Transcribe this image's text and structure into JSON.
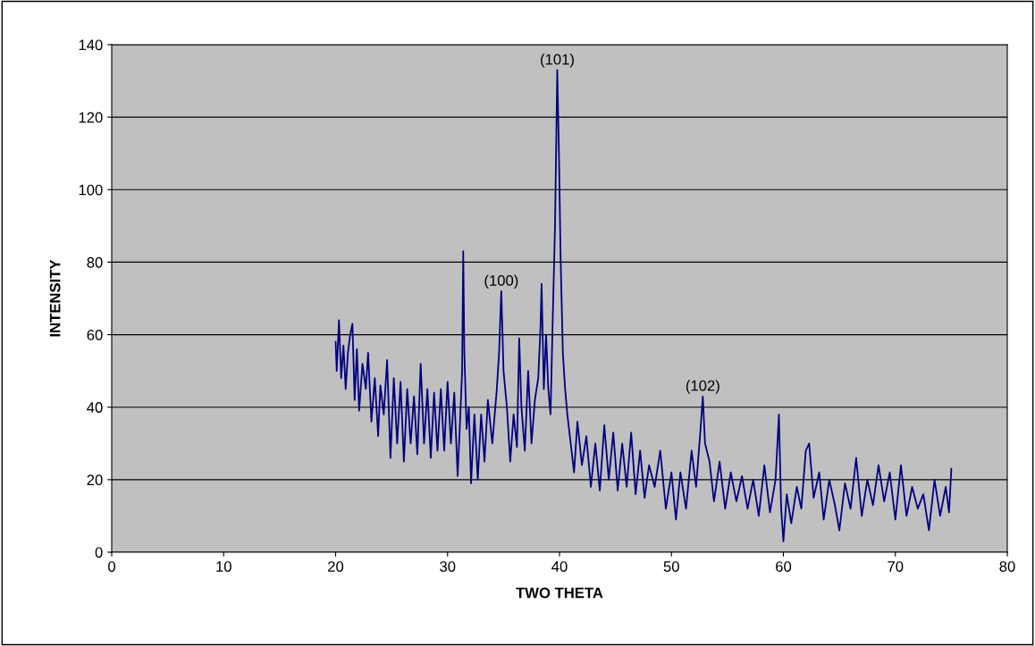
{
  "chart_data": {
    "type": "line",
    "xlabel": "TWO THETA",
    "ylabel": "INTENSITY",
    "xlim": [
      0,
      80
    ],
    "xticks": [
      0,
      10,
      20,
      30,
      40,
      50,
      60,
      70,
      80
    ],
    "ylim": [
      0,
      140
    ],
    "yticks": [
      0,
      20,
      40,
      60,
      80,
      100,
      120,
      140
    ],
    "grid": "y",
    "marker": "none",
    "line_style": "solid",
    "series": [
      {
        "color": "#000080",
        "x": [
          20.0,
          20.1,
          20.3,
          20.5,
          20.7,
          20.9,
          21.1,
          21.3,
          21.5,
          21.7,
          21.9,
          22.1,
          22.4,
          22.7,
          22.9,
          23.2,
          23.5,
          23.8,
          24.0,
          24.3,
          24.6,
          24.9,
          25.2,
          25.5,
          25.8,
          26.1,
          26.4,
          26.7,
          27.0,
          27.3,
          27.6,
          27.9,
          28.2,
          28.5,
          28.8,
          29.1,
          29.4,
          29.7,
          30.0,
          30.3,
          30.6,
          30.9,
          31.1,
          31.3,
          31.4,
          31.5,
          31.7,
          31.9,
          32.1,
          32.4,
          32.7,
          33.0,
          33.3,
          33.6,
          34.0,
          34.4,
          34.6,
          34.8,
          35.0,
          35.3,
          35.6,
          35.9,
          36.2,
          36.4,
          36.6,
          36.9,
          37.2,
          37.5,
          37.8,
          38.1,
          38.3,
          38.4,
          38.6,
          38.8,
          39.0,
          39.2,
          39.4,
          39.6,
          39.8,
          39.95,
          40.1,
          40.3,
          40.5,
          40.7,
          41.0,
          41.3,
          41.6,
          42.0,
          42.4,
          42.8,
          43.2,
          43.6,
          44.0,
          44.4,
          44.8,
          45.2,
          45.6,
          46.0,
          46.4,
          46.8,
          47.2,
          47.6,
          48.0,
          48.5,
          49.0,
          49.5,
          50.0,
          50.4,
          50.8,
          51.3,
          51.8,
          52.2,
          52.6,
          52.8,
          53.0,
          53.4,
          53.8,
          54.3,
          54.8,
          55.3,
          55.8,
          56.3,
          56.8,
          57.3,
          57.8,
          58.3,
          58.8,
          59.3,
          59.6,
          59.8,
          60.0,
          60.3,
          60.7,
          61.2,
          61.6,
          62.0,
          62.3,
          62.7,
          63.2,
          63.6,
          64.1,
          64.6,
          65.0,
          65.5,
          66.0,
          66.5,
          67.0,
          67.5,
          68.0,
          68.5,
          69.0,
          69.5,
          70.0,
          70.5,
          71.0,
          71.5,
          72.0,
          72.5,
          73.0,
          73.5,
          74.0,
          74.5,
          74.8,
          75.0
        ],
        "values": [
          58,
          50,
          64,
          48,
          57,
          45,
          55,
          60,
          63,
          42,
          56,
          39,
          52,
          45,
          55,
          36,
          48,
          32,
          46,
          38,
          53,
          26,
          48,
          30,
          47,
          25,
          45,
          30,
          43,
          27,
          52,
          30,
          45,
          26,
          44,
          28,
          45,
          28,
          47,
          30,
          44,
          21,
          35,
          50,
          83,
          55,
          34,
          40,
          19,
          38,
          20,
          38,
          25,
          42,
          30,
          45,
          55,
          72,
          50,
          40,
          25,
          38,
          29,
          59,
          40,
          28,
          50,
          30,
          42,
          48,
          62,
          74,
          45,
          60,
          45,
          38,
          65,
          90,
          133,
          110,
          81,
          55,
          45,
          38,
          30,
          22,
          36,
          24,
          32,
          18,
          30,
          17,
          35,
          20,
          33,
          17,
          30,
          18,
          33,
          16,
          28,
          15,
          24,
          18,
          28,
          12,
          22,
          9,
          22,
          12,
          28,
          18,
          34,
          43,
          30,
          25,
          14,
          25,
          12,
          22,
          14,
          21,
          12,
          20,
          10,
          24,
          11,
          20,
          38,
          12,
          3,
          16,
          8,
          18,
          12,
          28,
          30,
          15,
          22,
          9,
          20,
          13,
          6,
          19,
          12,
          26,
          10,
          20,
          13,
          24,
          14,
          22,
          9,
          24,
          10,
          18,
          12,
          16,
          6,
          20,
          10,
          18,
          11,
          23
        ]
      }
    ],
    "annotations": [
      {
        "text": "(100)",
        "x": 34.8,
        "y": 72
      },
      {
        "text": "(101)",
        "x": 39.8,
        "y": 133
      },
      {
        "text": "(102)",
        "x": 52.8,
        "y": 43
      }
    ]
  }
}
